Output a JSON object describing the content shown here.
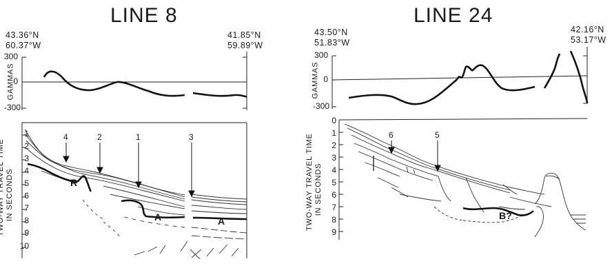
{
  "panels": [
    {
      "title": "LINE 8",
      "start": {
        "lat": "43.36°N",
        "lon": "60.37°W"
      },
      "end": {
        "lat": "41.85°N",
        "lon": "59.89°W"
      },
      "mag_axis": {
        "label": "GAMMAS",
        "ticks": [
          "300",
          "0",
          "-300"
        ]
      },
      "time_axis": {
        "label_line1": "TWO-WAY TRAVEL TIME",
        "label_line2": "IN SECONDS",
        "ticks": [
          "1",
          "2",
          "3",
          "4",
          "5",
          "6",
          "7",
          "8",
          "9",
          "10"
        ]
      },
      "arrows": [
        "4",
        "2",
        "1",
        "3"
      ],
      "horizons": [
        "R",
        "A",
        "A"
      ]
    },
    {
      "title": "LINE 24",
      "start": {
        "lat": "43.50°N",
        "lon": "51.83°W"
      },
      "end": {
        "lat": "42.16°N",
        "lon": "53.17°W"
      },
      "mag_axis": {
        "label": "GAMMAS",
        "ticks": [
          "300",
          "0",
          "-300"
        ]
      },
      "time_axis": {
        "label_line1": "TWO-WAY TRAVEL TIME",
        "label_line2": "IN SECONDS",
        "ticks": [
          "0",
          "1",
          "2",
          "3",
          "4",
          "5",
          "6",
          "7",
          "8",
          "9"
        ]
      },
      "arrows": [
        "6",
        "5"
      ],
      "horizons": [
        "B?"
      ]
    }
  ]
}
